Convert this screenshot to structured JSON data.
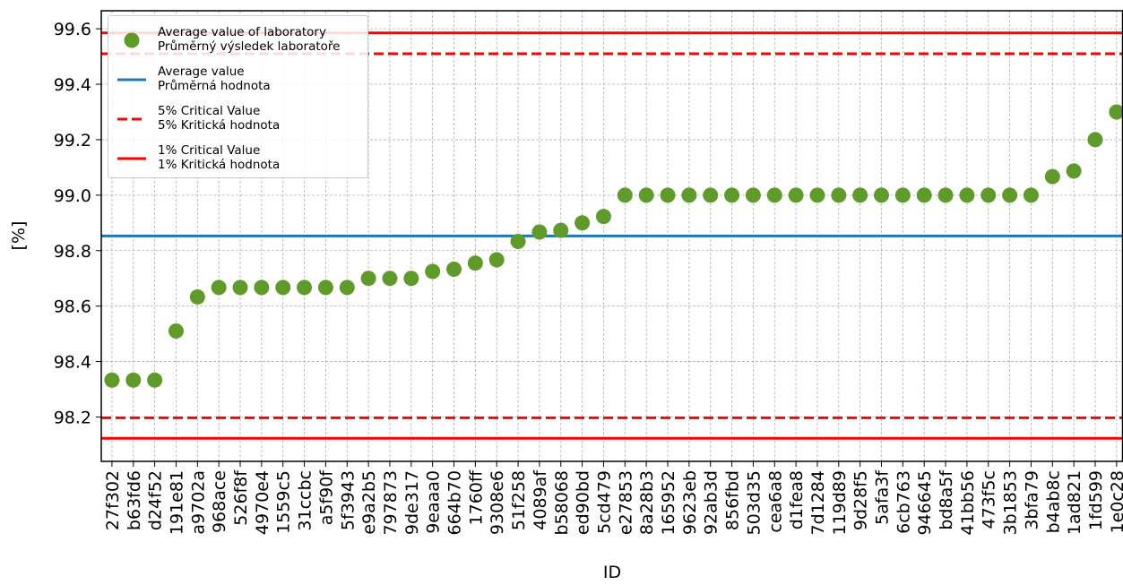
{
  "chart_data": {
    "type": "scatter",
    "xlabel": "ID",
    "ylabel": "[%]",
    "categories": [
      "27f302",
      "b63fd6",
      "d24f52",
      "191e81",
      "a9702a",
      "968ace",
      "526f8f",
      "4970e4",
      "1559c5",
      "31ccbc",
      "a5f90f",
      "5f3943",
      "e9a2b5",
      "797873",
      "9de317",
      "9eaaa0",
      "664b70",
      "1760ff",
      "9308e6",
      "51f258",
      "4089af",
      "b58068",
      "ed90bd",
      "5cd479",
      "e27853",
      "8a28b3",
      "165952",
      "9623eb",
      "92ab3d",
      "856fbd",
      "503d35",
      "cea6a8",
      "d1fea8",
      "7d1284",
      "119d89",
      "9d28f5",
      "5afa3f",
      "6cb763",
      "946645",
      "bd8a5f",
      "41bb56",
      "473f5c",
      "3b1853",
      "3bfa79",
      "b4ab8c",
      "1ad821",
      "1fd599",
      "1e0c28"
    ],
    "series": [
      {
        "name": "Average value of laboratory\nPrůměrný výsledek laboratoře",
        "color": "#5f9a2b",
        "values": [
          98.333,
          98.333,
          98.333,
          98.51,
          98.633,
          98.667,
          98.667,
          98.667,
          98.667,
          98.667,
          98.667,
          98.667,
          98.7,
          98.7,
          98.7,
          98.725,
          98.733,
          98.755,
          98.767,
          98.833,
          98.867,
          98.873,
          98.9,
          98.923,
          99,
          99,
          99,
          99,
          99,
          99,
          99,
          99,
          99,
          99,
          99,
          99,
          99,
          99,
          99,
          99,
          99,
          99,
          99,
          99,
          99.067,
          99.087,
          99.2,
          99.3
        ]
      }
    ],
    "reference_lines": [
      {
        "name": "Average value\nPrůměrná hodnota",
        "color": "#1f77b4",
        "dashed": false,
        "values": [
          98.853
        ]
      },
      {
        "name": "5% Critical Value\n5% Kritická hodnota",
        "color": "#ff0000",
        "dashed": true,
        "values": [
          98.197,
          99.51
        ]
      },
      {
        "name": "1% Critical Value\n1% Kritická hodnota",
        "color": "#ff0000",
        "dashed": false,
        "values": [
          98.123,
          99.585
        ]
      }
    ],
    "ylim": [
      98.04,
      99.665
    ],
    "yticks": [
      98.2,
      98.4,
      98.6,
      98.8,
      {
        "value": 99,
        "label": "99.0"
      },
      99.2,
      99.4,
      99.6
    ],
    "grid": true,
    "legend": "upper left"
  }
}
